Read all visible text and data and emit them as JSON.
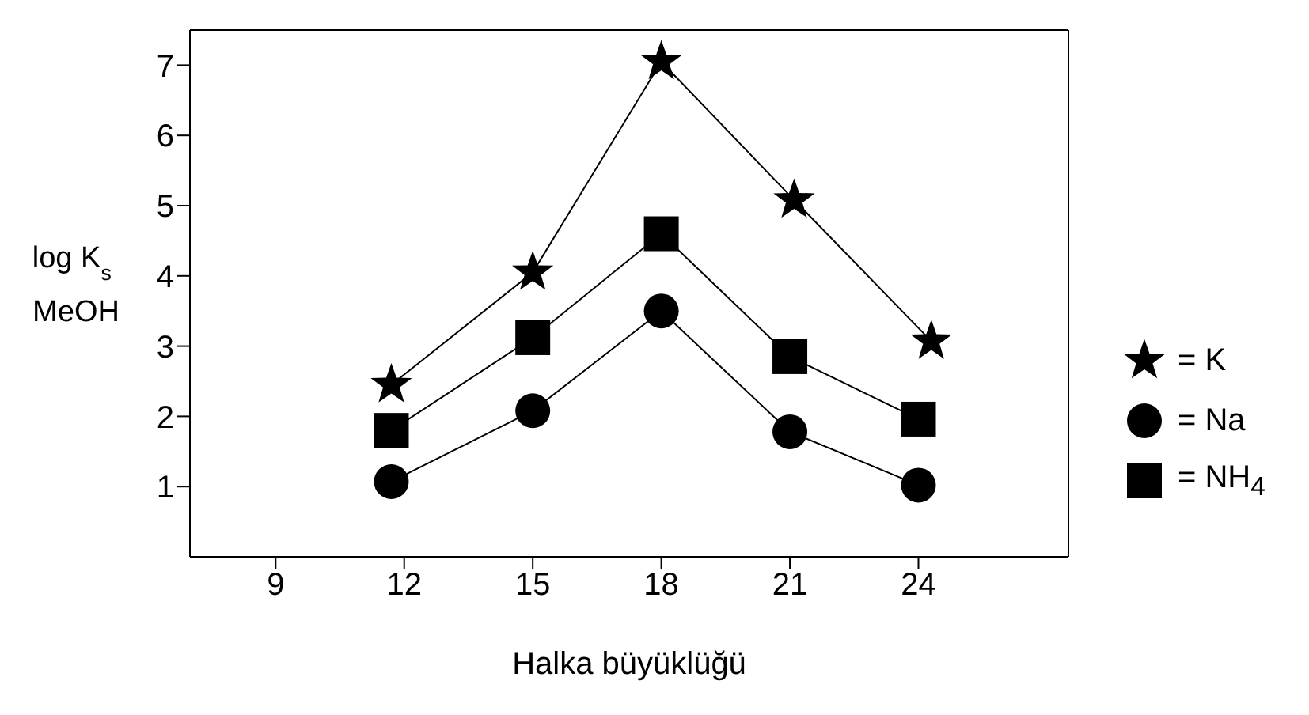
{
  "chart_data": {
    "type": "line",
    "xlabel": "Halka büyüklüğü",
    "ylabel": "log K$_{s}$\nMeOH",
    "xlim": [
      7,
      27.5
    ],
    "xticks": [
      9,
      12,
      15,
      18,
      21,
      24
    ],
    "ylim": [
      0,
      7.5
    ],
    "yticks": [
      1,
      2,
      3,
      4,
      5,
      6,
      7
    ],
    "legend": "right",
    "line_style": "solid",
    "series": [
      {
        "name": "= K",
        "color": "#000000",
        "marker": "star",
        "x": [
          11.7,
          15,
          18,
          21.1,
          24.3
        ],
        "values": [
          2.45,
          4.05,
          7.05,
          5.08,
          3.07
        ]
      },
      {
        "name": "= Na",
        "color": "#000000",
        "marker": "circle",
        "x": [
          11.7,
          15,
          18,
          21,
          24
        ],
        "values": [
          1.07,
          2.08,
          3.5,
          1.78,
          1.02
        ]
      },
      {
        "name": "= NH$_{4}$",
        "color": "#000000",
        "marker": "square",
        "x": [
          11.7,
          15,
          18,
          21,
          24
        ],
        "values": [
          1.8,
          3.12,
          4.6,
          2.85,
          1.96
        ]
      }
    ]
  }
}
